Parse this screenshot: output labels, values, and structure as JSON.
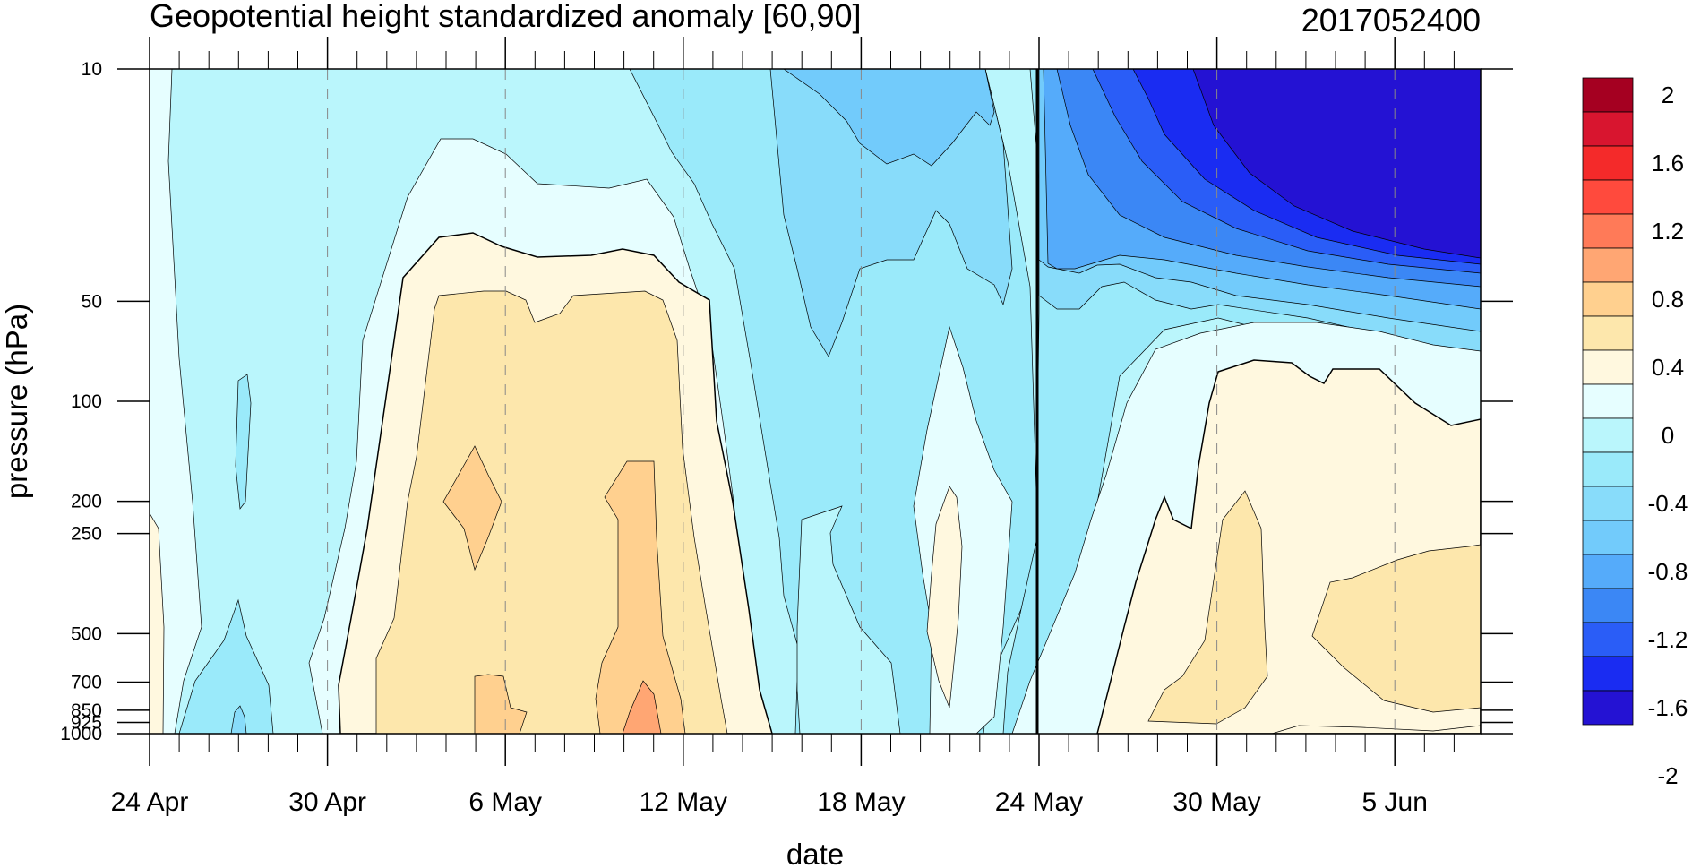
{
  "chart_data": {
    "type": "heatmap",
    "title": "Geopotential height standardized anomaly [60,90]",
    "run_label": "2017052400",
    "xlabel": "date",
    "ylabel": "pressure (hPa)",
    "x_tick_labels": [
      "24 Apr",
      "30 Apr",
      "6 May",
      "12 May",
      "18 May",
      "24 May",
      "30 May",
      "5 Jun"
    ],
    "x_range": [
      "24 Apr",
      "8 Jun"
    ],
    "y_tick_labels": [
      "10",
      "50",
      "100",
      "200",
      "250",
      "500",
      "700",
      "850",
      "925",
      "1000"
    ],
    "y_range": [
      1000,
      10
    ],
    "y_scale": "log",
    "vertical_marker": "24 May",
    "grid": "dashed vertical lines at date ticks",
    "legend": "colorbar-right",
    "colorbar_labels": [
      "2",
      "1.6",
      "1.2",
      "0.8",
      "0.4",
      "0",
      "-0.4",
      "-0.8",
      "-1.2",
      "-1.6",
      "-2"
    ],
    "colorbar_colors": [
      "#a50021",
      "#d8152f",
      "#f42a2a",
      "#ff4a3d",
      "#ff7a58",
      "#ffa673",
      "#ffd08f",
      "#fde7ac",
      "#fff8df",
      "#e6feff",
      "#baf6fc",
      "#9aeafa",
      "#88dcfa",
      "#72cbfb",
      "#55abfa",
      "#3b87f5",
      "#2a5df7",
      "#1a2cf2",
      "#2412d3"
    ]
  }
}
